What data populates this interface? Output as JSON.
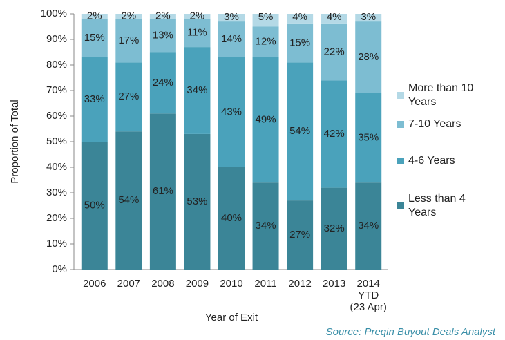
{
  "chart_data": {
    "type": "stacked_bar",
    "x_label": "Year of Exit",
    "y_label": "Proportion of Total",
    "source": "Source: Preqin Buyout Deals Analyst",
    "categories": [
      "2006",
      "2007",
      "2008",
      "2009",
      "2010",
      "2011",
      "2012",
      "2013",
      "2014\nYTD\n(23 Apr)"
    ],
    "series": [
      {
        "name": "Less than 4 Years",
        "color": "#3b8597",
        "values": [
          50,
          54,
          61,
          53,
          40,
          34,
          27,
          32,
          34
        ],
        "value_labels": [
          "50%",
          "54%",
          "61%",
          "53%",
          "40%",
          "34%",
          "27%",
          "32%",
          "34%"
        ]
      },
      {
        "name": "4-6 Years",
        "color": "#4aa2bb",
        "values": [
          33,
          27,
          24,
          34,
          43,
          49,
          54,
          42,
          35
        ],
        "value_labels": [
          "33%",
          "27%",
          "24%",
          "34%",
          "43%",
          "49%",
          "54%",
          "42%",
          "35%"
        ]
      },
      {
        "name": "7-10 Years",
        "color": "#7dbdd2",
        "values": [
          15,
          17,
          13,
          11,
          14,
          12,
          15,
          22,
          28
        ],
        "value_labels": [
          "15%",
          "17%",
          "13%",
          "11%",
          "14%",
          "12%",
          "15%",
          "22%",
          "28%"
        ]
      },
      {
        "name": "More than 10 Years",
        "color": "#b4d9e6",
        "values": [
          2,
          2,
          2,
          2,
          3,
          5,
          4,
          4,
          3
        ],
        "value_labels": [
          "2%",
          "2%",
          "2%",
          "2%",
          "3%",
          "5%",
          "4%",
          "4%",
          "3%"
        ]
      }
    ],
    "ylim": [
      0,
      100
    ],
    "yticks": [
      {
        "value": 0,
        "label": "0%"
      },
      {
        "value": 10,
        "label": "10%"
      },
      {
        "value": 20,
        "label": "20%"
      },
      {
        "value": 30,
        "label": "30%"
      },
      {
        "value": 40,
        "label": "40%"
      },
      {
        "value": 50,
        "label": "50%"
      },
      {
        "value": 60,
        "label": "60%"
      },
      {
        "value": 70,
        "label": "70%"
      },
      {
        "value": 80,
        "label": "80%"
      },
      {
        "value": 90,
        "label": "90%"
      },
      {
        "value": 100,
        "label": "100%"
      }
    ],
    "grid": false,
    "legend": "right"
  }
}
